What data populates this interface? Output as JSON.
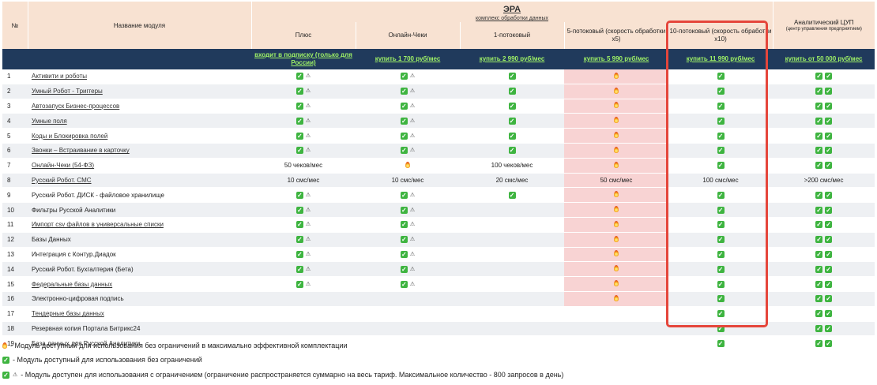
{
  "header": {
    "num_label": "№",
    "name_label": "Название модуля",
    "era_title": "ЭРА",
    "era_subtitle": "комплекс обработки данных",
    "columns": [
      {
        "title": "Плюс",
        "price": "входит в подписку (только для России)"
      },
      {
        "title": "Онлайн-Чеки",
        "price": "купить 1 700 руб/мес"
      },
      {
        "title": "1-потоковый",
        "price": "купить 2 990 руб/мес"
      },
      {
        "title": "5-потоковый (скорость обработки x5)",
        "price": "купить 5 990 руб/мес"
      },
      {
        "title": "10-потоковый (скорость обработки x10)",
        "price": "купить 11 990 руб/мес"
      },
      {
        "title": "Аналитический ЦУП",
        "subtitle": "(центр управления предприятием)",
        "price": "купить от 50 000 руб/мес"
      }
    ]
  },
  "rows": [
    {
      "n": "1",
      "name": "Активити и роботы",
      "link": true,
      "cells": [
        "ck,wr",
        "ck,wr",
        "ck",
        "fi",
        "ck",
        "ck,ck"
      ]
    },
    {
      "n": "2",
      "name": "Умный Робот - Триггеры",
      "link": true,
      "cells": [
        "ck,wr",
        "ck,wr",
        "ck",
        "fi",
        "ck",
        "ck,ck"
      ]
    },
    {
      "n": "3",
      "name": "Автозапуск Бизнес-процессов",
      "link": true,
      "cells": [
        "ck,wr",
        "ck,wr",
        "ck",
        "fi",
        "ck",
        "ck,ck"
      ]
    },
    {
      "n": "4",
      "name": "Умные поля",
      "link": true,
      "cells": [
        "ck,wr",
        "ck,wr",
        "ck",
        "fi",
        "ck",
        "ck,ck"
      ]
    },
    {
      "n": "5",
      "name": "Коды и Блокировка полей",
      "link": true,
      "cells": [
        "ck,wr",
        "ck,wr",
        "ck",
        "fi",
        "ck",
        "ck,ck"
      ]
    },
    {
      "n": "6",
      "name": "Звонки – Встраивание в карточку",
      "link": true,
      "cells": [
        "ck,wr",
        "ck,wr",
        "ck",
        "fi",
        "ck",
        "ck,ck"
      ]
    },
    {
      "n": "7",
      "name": "Онлайн-Чеки (54-ФЗ)",
      "link": true,
      "cells": [
        "t:50 чеков/мес",
        "fi",
        "t:100 чеков/мес",
        "fi",
        "ck",
        "ck,ck"
      ]
    },
    {
      "n": "8",
      "name": "Русский Робот. СМС",
      "link": true,
      "cells": [
        "t:10 смс/мес",
        "t:10 смс/мес",
        "t:20 смс/мес",
        "t:50 смс/мес",
        "t:100 смс/мес",
        "t:>200 смс/мес"
      ]
    },
    {
      "n": "9",
      "name": "Русский Робот. ДИСК - файловое хранилище",
      "link": false,
      "cells": [
        "ck,wr",
        "ck,wr",
        "ck",
        "fi",
        "ck",
        "ck,ck"
      ]
    },
    {
      "n": "10",
      "name": "Фильтры Русской Аналитики",
      "link": false,
      "cells": [
        "ck,wr",
        "ck,wr",
        "",
        "fi",
        "ck",
        "ck,ck"
      ]
    },
    {
      "n": "11",
      "name": "Импорт csv файлов в универсальные списки",
      "link": true,
      "cells": [
        "ck,wr",
        "ck,wr",
        "",
        "fi",
        "ck",
        "ck,ck"
      ]
    },
    {
      "n": "12",
      "name": "Базы Данных",
      "link": false,
      "cells": [
        "ck,wr",
        "ck,wr",
        "",
        "fi",
        "ck",
        "ck,ck"
      ]
    },
    {
      "n": "13",
      "name": "Интеграция с Контур.Диадок",
      "link": false,
      "cells": [
        "ck,wr",
        "ck,wr",
        "",
        "fi",
        "ck",
        "ck,ck"
      ]
    },
    {
      "n": "14",
      "name": "Русский Робот. Бухгалтерия (Бета)",
      "link": false,
      "cells": [
        "ck,wr",
        "ck,wr",
        "",
        "fi",
        "ck",
        "ck,ck"
      ]
    },
    {
      "n": "15",
      "name": "Федеральные базы данных",
      "link": true,
      "cells": [
        "ck,wr",
        "ck,wr",
        "",
        "fi",
        "ck",
        "ck,ck"
      ]
    },
    {
      "n": "16",
      "name": "Электронно-цифровая подпись",
      "link": false,
      "cells": [
        "",
        "",
        "",
        "fi",
        "ck",
        "ck,ck"
      ]
    },
    {
      "n": "17",
      "name": "Тендерные базы данных",
      "link": true,
      "cells": [
        "",
        "",
        "",
        "",
        "ck",
        "ck,ck"
      ]
    },
    {
      "n": "18",
      "name": "Резервная копия Портала Битрикс24",
      "link": false,
      "cells": [
        "",
        "",
        "",
        "",
        "ck",
        "ck,ck"
      ]
    },
    {
      "n": "19",
      "name": "База данных для Русской Аналитики",
      "link": false,
      "cells": [
        "",
        "",
        "",
        "",
        "ck",
        "ck,ck"
      ]
    }
  ],
  "pink_rows_col4": 16,
  "legend": [
    {
      "icons": "fi",
      "text": "- Модуль доступный для использования без ограничений в максимально эффективной комплектации"
    },
    {
      "icons": "ck",
      "text": "- Модуль доступный для использования без ограничений"
    },
    {
      "icons": "ck,wr",
      "text": "- Модуль доступен для использования с ограничением (ограничение распространяется суммарно на весь тариф. Максимальное количество - 800 запросов в день)"
    }
  ],
  "icons": {
    "ck": "check-icon",
    "wr": "warning-icon",
    "fi": "fire-icon"
  },
  "colors": {
    "header_bg": "#f8e2d2",
    "price_bg": "#203a5c",
    "price_text": "#9ff266",
    "highlight": "#e5463b",
    "pink": "#f8d3d3",
    "check": "#3eb440"
  }
}
